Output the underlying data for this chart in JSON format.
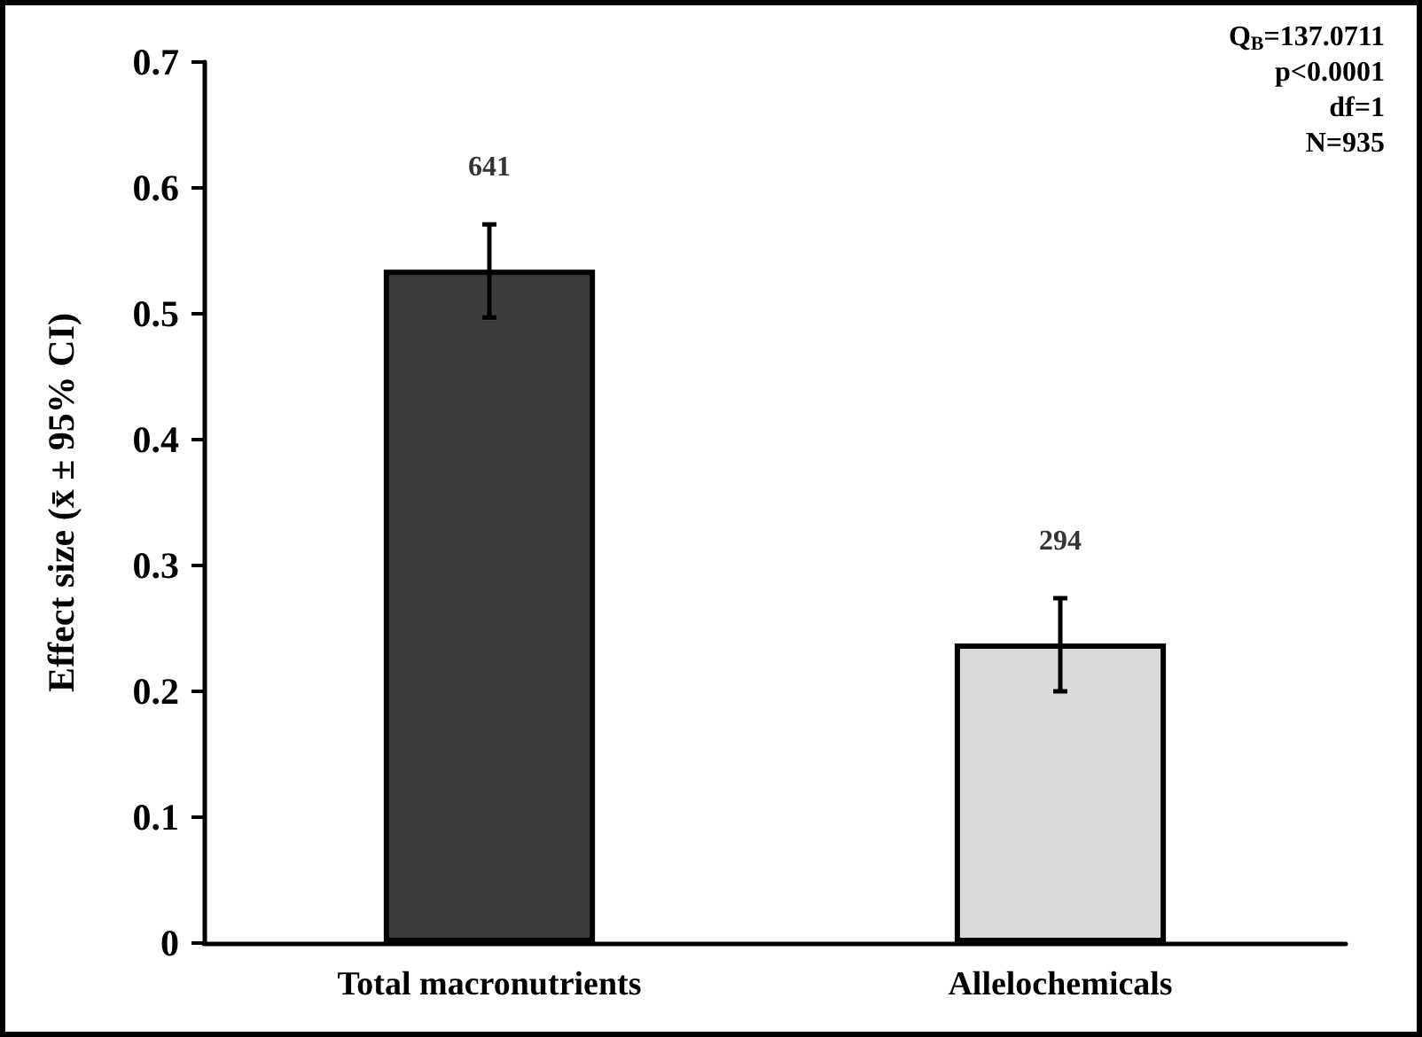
{
  "chart_data": {
    "type": "bar",
    "ylabel": "Effect size (x̄ ± 95% CI)",
    "categories": [
      "Total macronutrients",
      "Allelochemicals"
    ],
    "values": [
      0.535,
      0.238
    ],
    "colors": [
      "#3c3c3c",
      "#d9d9d9"
    ],
    "errors": [
      [
        0.497,
        0.571
      ],
      [
        0.2,
        0.274
      ]
    ],
    "ylim": [
      0,
      0.7
    ],
    "yticks": [
      0,
      0.1,
      0.2,
      0.3,
      0.4,
      0.5,
      0.6,
      0.7
    ],
    "grid": false,
    "annotations": [
      {
        "text": "641",
        "x": "Total macronutrients",
        "y": 0.571
      },
      {
        "text": "294",
        "x": "Allelochemicals",
        "y": 0.274
      },
      "Q$_{B}$=137.0711",
      "p<0.0001",
      "df=1",
      "N=935"
    ]
  }
}
